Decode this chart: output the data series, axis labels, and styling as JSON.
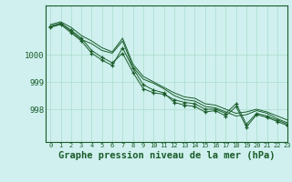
{
  "title": "Graphe pression niveau de la mer (hPa)",
  "background_color": "#cff0ee",
  "grid_color": "#aaddcc",
  "line_color": "#1a5c2a",
  "xlim": [
    -0.5,
    23
  ],
  "ylim": [
    996.8,
    1001.8
  ],
  "yticks": [
    998,
    999,
    1000
  ],
  "xticks": [
    0,
    1,
    2,
    3,
    4,
    5,
    6,
    7,
    8,
    9,
    10,
    11,
    12,
    13,
    14,
    15,
    16,
    17,
    18,
    19,
    20,
    21,
    22,
    23
  ],
  "series": [
    [
      1001.0,
      1001.15,
      1000.85,
      1000.55,
      1000.4,
      1000.15,
      1000.05,
      1000.5,
      999.55,
      999.1,
      998.95,
      998.75,
      998.5,
      998.35,
      998.3,
      998.1,
      998.05,
      997.9,
      997.75,
      997.8,
      997.95,
      997.85,
      997.65,
      997.5
    ],
    [
      1001.1,
      1001.2,
      1001.0,
      1000.7,
      1000.5,
      1000.25,
      1000.1,
      1000.6,
      999.65,
      999.2,
      999.0,
      998.8,
      998.6,
      998.45,
      998.4,
      998.2,
      998.15,
      998.0,
      997.85,
      997.9,
      998.0,
      997.9,
      997.75,
      997.6
    ],
    [
      1001.05,
      1001.15,
      1000.9,
      1000.6,
      1000.15,
      999.9,
      999.7,
      1000.05,
      999.35,
      998.75,
      998.6,
      998.55,
      998.35,
      998.25,
      998.2,
      998.0,
      998.0,
      997.85,
      998.2,
      997.45,
      997.85,
      997.75,
      997.6,
      997.45
    ],
    [
      1001.0,
      1001.1,
      1000.8,
      1000.5,
      1000.05,
      999.8,
      999.6,
      1000.25,
      999.5,
      998.9,
      998.7,
      998.6,
      998.25,
      998.15,
      998.1,
      997.9,
      997.95,
      997.75,
      998.1,
      997.35,
      997.8,
      997.7,
      997.55,
      997.4
    ]
  ],
  "marked_series": [
    2,
    3
  ],
  "title_fontsize": 7.5,
  "tick_fontsize": 6.5
}
